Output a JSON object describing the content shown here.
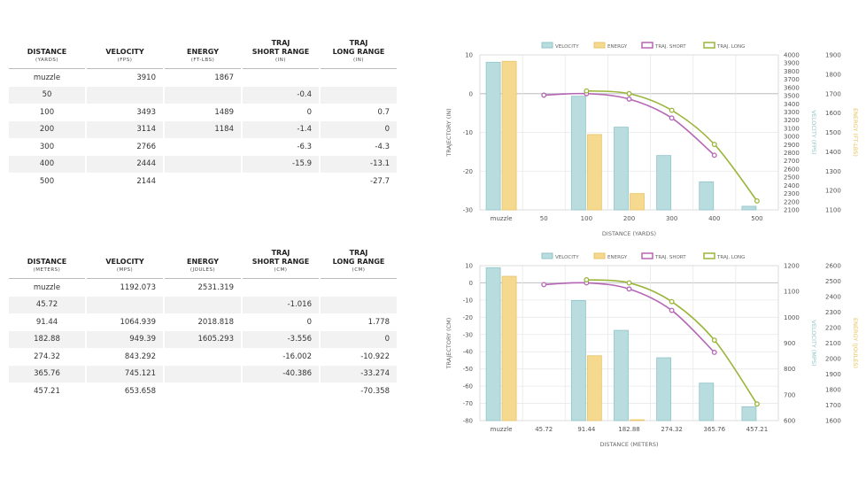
{
  "tables": [
    {
      "headers": [
        {
          "title_lines": [
            "DISTANCE"
          ],
          "unit": "(YARDS)"
        },
        {
          "title_lines": [
            "VELOCITY"
          ],
          "unit": "(FPS)"
        },
        {
          "title_lines": [
            "ENERGY"
          ],
          "unit": "(FT-LBS)"
        },
        {
          "title_lines": [
            "TRAJ",
            "SHORT RANGE"
          ],
          "unit": "(IN)"
        },
        {
          "title_lines": [
            "TRAJ",
            "LONG RANGE"
          ],
          "unit": "(IN)"
        }
      ],
      "rows": [
        [
          "muzzle",
          "3910",
          "1867",
          "",
          ""
        ],
        [
          "50",
          "",
          "",
          "-0.4",
          ""
        ],
        [
          "100",
          "3493",
          "1489",
          "0",
          "0.7"
        ],
        [
          "200",
          "3114",
          "1184",
          "-1.4",
          "0"
        ],
        [
          "300",
          "2766",
          "",
          "-6.3",
          "-4.3"
        ],
        [
          "400",
          "2444",
          "",
          "-15.9",
          "-13.1"
        ],
        [
          "500",
          "2144",
          "",
          "",
          "-27.7"
        ]
      ]
    },
    {
      "headers": [
        {
          "title_lines": [
            "DISTANCE"
          ],
          "unit": "(METERS)"
        },
        {
          "title_lines": [
            "VELOCITY"
          ],
          "unit": "(MPS)"
        },
        {
          "title_lines": [
            "ENERGY"
          ],
          "unit": "(JOULES)"
        },
        {
          "title_lines": [
            "TRAJ",
            "SHORT RANGE"
          ],
          "unit": "(CM)"
        },
        {
          "title_lines": [
            "TRAJ",
            "LONG RANGE"
          ],
          "unit": "(CM)"
        }
      ],
      "rows": [
        [
          "muzzle",
          "1192.073",
          "2531.319",
          "",
          ""
        ],
        [
          "45.72",
          "",
          "",
          "-1.016",
          ""
        ],
        [
          "91.44",
          "1064.939",
          "2018.818",
          "0",
          "1.778"
        ],
        [
          "182.88",
          "949.39",
          "1605.293",
          "-3.556",
          "0"
        ],
        [
          "274.32",
          "843.292",
          "",
          "-16.002",
          "-10.922"
        ],
        [
          "365.76",
          "745.121",
          "",
          "-40.386",
          "-33.274"
        ],
        [
          "457.21",
          "653.658",
          "",
          "",
          "-70.358"
        ]
      ]
    }
  ],
  "colors": {
    "velocity_fill": "#b9dcdf",
    "velocity_stroke": "#8ec4c9",
    "energy_fill": "#f5d98e",
    "energy_stroke": "#e8c46a",
    "traj_short": "#b565b5",
    "traj_long": "#9ab53a",
    "velocity_axis": "#8ec4c9",
    "energy_axis": "#e6c35c",
    "grid": "#e8e8e8",
    "zero_line": "#c8c8c8",
    "axis_text": "#555555"
  },
  "chart_data": [
    {
      "type": "bar",
      "categories": [
        "muzzle",
        "50",
        "100",
        "200",
        "300",
        "400",
        "500"
      ],
      "xlabel": "DISTANCE (YARDS)",
      "legend": [
        "VELOCITY",
        "ENERGY",
        "TRAJ. SHORT",
        "TRAJ. LONG"
      ],
      "left_axis": {
        "label": "TRAJECTORY (IN)",
        "range": [
          -30,
          10
        ],
        "ticks": [
          10,
          0,
          -10,
          -20,
          -30
        ]
      },
      "velocity_axis": {
        "label": "VELOCITY (FPS)",
        "range": [
          2100,
          4000
        ],
        "ticks": [
          4000,
          3900,
          3800,
          3700,
          3600,
          3500,
          3400,
          3300,
          3200,
          3100,
          3000,
          2900,
          2800,
          2700,
          2600,
          2500,
          2400,
          2300,
          2200,
          2100
        ]
      },
      "energy_axis": {
        "label": "ENERGY (FT-LBS)",
        "range": [
          1100,
          1900
        ],
        "ticks": [
          1900,
          1800,
          1700,
          1600,
          1500,
          1400,
          1300,
          1200,
          1100
        ]
      },
      "series": [
        {
          "name": "VELOCITY",
          "kind": "bar",
          "axis": "velocity",
          "values": [
            3910,
            null,
            3493,
            3114,
            2766,
            2444,
            2144
          ]
        },
        {
          "name": "ENERGY",
          "kind": "bar",
          "axis": "energy",
          "values": [
            1867,
            null,
            1489,
            1184,
            null,
            null,
            null
          ]
        },
        {
          "name": "TRAJ. SHORT",
          "kind": "line",
          "axis": "left",
          "values": [
            null,
            -0.4,
            0,
            -1.4,
            -6.3,
            -15.9,
            null
          ]
        },
        {
          "name": "TRAJ. LONG",
          "kind": "line",
          "axis": "left",
          "values": [
            null,
            null,
            0.7,
            0,
            -4.3,
            -13.1,
            -27.7
          ]
        }
      ]
    },
    {
      "type": "bar",
      "categories": [
        "muzzle",
        "45.72",
        "91.44",
        "182.88",
        "274.32",
        "365.76",
        "457.21"
      ],
      "xlabel": "DISTANCE (METERS)",
      "legend": [
        "VELOCITY",
        "ENERGY",
        "TRAJ. SHORT",
        "TRAJ. LONG"
      ],
      "left_axis": {
        "label": "TRAJECTORY (CM)",
        "range": [
          -80,
          10
        ],
        "ticks": [
          10,
          0,
          -10,
          -20,
          -30,
          -40,
          -50,
          -60,
          -70,
          -80
        ]
      },
      "velocity_axis": {
        "label": "VELOCITY (MPS)",
        "range": [
          600,
          1200
        ],
        "ticks": [
          1200,
          1100,
          1000,
          900,
          800,
          700,
          600
        ]
      },
      "energy_axis": {
        "label": "ENERGY (JOULES)",
        "range": [
          1600,
          2600
        ],
        "ticks": [
          2600,
          2500,
          2400,
          2300,
          2200,
          2100,
          2000,
          1900,
          1800,
          1700,
          1600
        ]
      },
      "series": [
        {
          "name": "VELOCITY",
          "kind": "bar",
          "axis": "velocity",
          "values": [
            1192.073,
            null,
            1064.939,
            949.39,
            843.292,
            745.121,
            653.658
          ]
        },
        {
          "name": "ENERGY",
          "kind": "bar",
          "axis": "energy",
          "values": [
            2531.319,
            null,
            2018.818,
            1605.293,
            null,
            null,
            null
          ]
        },
        {
          "name": "TRAJ. SHORT",
          "kind": "line",
          "axis": "left",
          "values": [
            null,
            -1.016,
            0,
            -3.556,
            -16.002,
            -40.386,
            null
          ]
        },
        {
          "name": "TRAJ. LONG",
          "kind": "line",
          "axis": "left",
          "values": [
            null,
            null,
            1.778,
            0,
            -10.922,
            -33.274,
            -70.358
          ]
        }
      ]
    }
  ]
}
